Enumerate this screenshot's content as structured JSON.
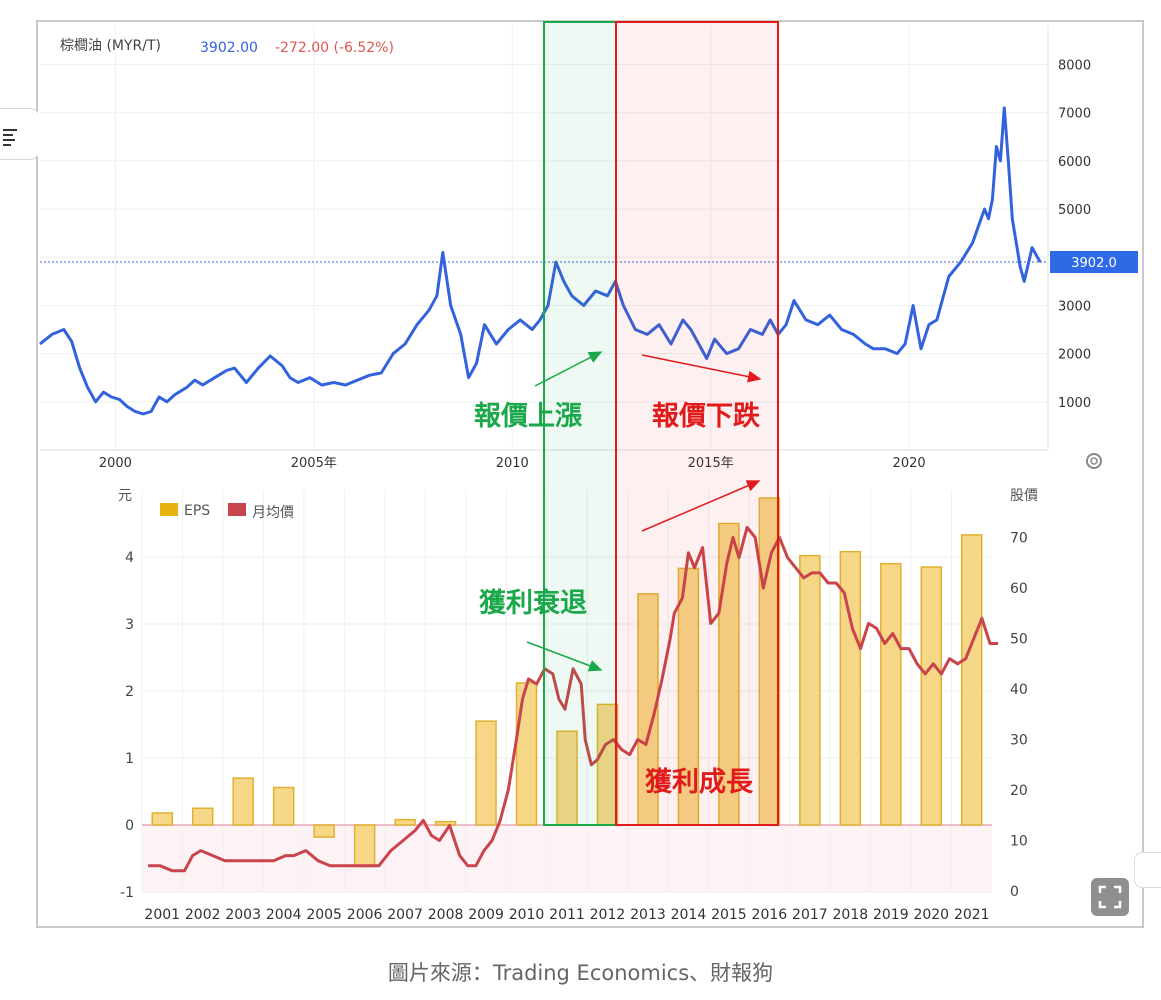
{
  "caption": "圖片來源：Trading Economics、財報狗",
  "top_chart": {
    "series_name": "棕櫚油 (MYR/T)",
    "last_value_text": "3902.00",
    "change_text": "-272.00 (-6.52%)",
    "last_value_badge": "3902.0",
    "colors": {
      "line": "#3362dd",
      "change": "#e0564e",
      "badge": "#2e6ae6"
    }
  },
  "bottom_chart": {
    "left_axis_title": "元",
    "right_axis_title": "股價",
    "colors": {
      "eps_fill": "#f6d787",
      "eps_stroke": "#e0b130",
      "price": "#c9444c"
    }
  },
  "annotations": {
    "price_up": "報價上漲",
    "price_down": "報價下跌",
    "profit_decline": "獲利衰退",
    "profit_growth": "獲利成長",
    "colors": {
      "green": "#1aa84a",
      "red": "#e11b1b"
    }
  },
  "chart_data": [
    {
      "type": "line",
      "title": "棕櫚油 (MYR/T)",
      "x_ticks": [
        "2000",
        "2005年",
        "2010",
        "2015年",
        "2020"
      ],
      "y_ticks": [
        1000,
        2000,
        3000,
        4000,
        5000,
        6000,
        7000,
        8000
      ],
      "ylim": [
        0,
        8800
      ],
      "xlim": [
        1998.1,
        2023.5
      ],
      "grid": true,
      "series": [
        {
          "name": "棕櫚油 (MYR/T)",
          "x": [
            1998.1,
            1998.4,
            1998.7,
            1998.9,
            1999.1,
            1999.3,
            1999.5,
            1999.7,
            1999.9,
            2000.1,
            2000.3,
            2000.5,
            2000.7,
            2000.9,
            2001.1,
            2001.3,
            2001.5,
            2001.6,
            2001.8,
            2002.0,
            2002.2,
            2002.5,
            2002.8,
            2003.0,
            2003.3,
            2003.6,
            2003.9,
            2004.2,
            2004.4,
            2004.6,
            2004.9,
            2005.2,
            2005.5,
            2005.8,
            2006.1,
            2006.4,
            2006.7,
            2007.0,
            2007.3,
            2007.6,
            2007.9,
            2008.1,
            2008.25,
            2008.45,
            2008.7,
            2008.9,
            2009.1,
            2009.3,
            2009.6,
            2009.9,
            2010.2,
            2010.5,
            2010.7,
            2010.9,
            2011.1,
            2011.3,
            2011.5,
            2011.8,
            2012.1,
            2012.4,
            2012.6,
            2012.8,
            2013.1,
            2013.4,
            2013.7,
            2014.0,
            2014.3,
            2014.5,
            2014.7,
            2014.9,
            2015.1,
            2015.4,
            2015.7,
            2016.0,
            2016.3,
            2016.5,
            2016.7,
            2016.9,
            2017.1,
            2017.4,
            2017.7,
            2018.0,
            2018.3,
            2018.6,
            2018.9,
            2019.1,
            2019.4,
            2019.7,
            2019.9,
            2020.1,
            2020.3,
            2020.5,
            2020.7,
            2021.0,
            2021.3,
            2021.6,
            2021.9,
            2022.0,
            2022.1,
            2022.2,
            2022.3,
            2022.4,
            2022.5,
            2022.6,
            2022.8,
            2022.9,
            2023.1,
            2023.3
          ],
          "values": [
            2200,
            2400,
            2500,
            2250,
            1700,
            1300,
            1000,
            1200,
            1100,
            1050,
            900,
            800,
            750,
            800,
            1100,
            1000,
            1150,
            1200,
            1300,
            1450,
            1350,
            1500,
            1650,
            1700,
            1400,
            1700,
            1950,
            1750,
            1500,
            1400,
            1500,
            1350,
            1400,
            1350,
            1450,
            1550,
            1600,
            2000,
            2200,
            2600,
            2900,
            3200,
            4100,
            3000,
            2400,
            1500,
            1800,
            2600,
            2200,
            2500,
            2700,
            2500,
            2700,
            3000,
            3900,
            3500,
            3200,
            3000,
            3300,
            3200,
            3500,
            3000,
            2500,
            2400,
            2600,
            2200,
            2700,
            2500,
            2200,
            1900,
            2300,
            2000,
            2100,
            2500,
            2400,
            2700,
            2400,
            2600,
            3100,
            2700,
            2600,
            2800,
            2500,
            2400,
            2200,
            2100,
            2100,
            2000,
            2200,
            3000,
            2100,
            2600,
            2700,
            3600,
            3900,
            4300,
            5000,
            4800,
            5200,
            6300,
            6000,
            7100,
            6000,
            4800,
            3800,
            3500,
            4200,
            3902
          ]
        }
      ]
    },
    {
      "type": "bar",
      "categories": [
        "2001",
        "2002",
        "2003",
        "2004",
        "2005",
        "2006",
        "2007",
        "2008",
        "2009",
        "2010",
        "2011",
        "2012",
        "2013",
        "2014",
        "2015",
        "2016",
        "2017",
        "2018",
        "2019",
        "2020",
        "2021"
      ],
      "y_ticks": [
        -1,
        0,
        1,
        2,
        3,
        4
      ],
      "ylim": [
        -1,
        4.8
      ],
      "right_y_ticks": [
        0,
        10,
        20,
        30,
        40,
        50,
        60,
        70
      ],
      "right_ylim": [
        0,
        80
      ],
      "left_axis_title": "元",
      "right_axis_title": "股價",
      "grid": true,
      "legend_position": "top-left",
      "series": [
        {
          "name": "EPS",
          "type": "bar",
          "axis": "left",
          "values": [
            0.18,
            0.25,
            0.7,
            0.56,
            -0.18,
            -0.62,
            0.08,
            0.05,
            1.55,
            2.12,
            1.4,
            1.8,
            3.45,
            3.83,
            4.5,
            4.88,
            4.02,
            4.08,
            3.9,
            3.85,
            4.33
          ]
        },
        {
          "name": "月均價",
          "type": "line",
          "axis": "right",
          "x": [
            2001.0,
            2001.3,
            2001.6,
            2001.9,
            2002.1,
            2002.3,
            2002.6,
            2002.9,
            2003.2,
            2003.5,
            2003.8,
            2004.1,
            2004.4,
            2004.6,
            2004.9,
            2005.2,
            2005.5,
            2005.8,
            2006.1,
            2006.4,
            2006.7,
            2007.0,
            2007.3,
            2007.6,
            2007.8,
            2008.0,
            2008.2,
            2008.45,
            2008.7,
            2008.9,
            2009.1,
            2009.3,
            2009.5,
            2009.7,
            2009.9,
            2010.1,
            2010.25,
            2010.4,
            2010.6,
            2010.8,
            2011.0,
            2011.15,
            2011.3,
            2011.5,
            2011.7,
            2011.8,
            2011.95,
            2012.1,
            2012.3,
            2012.5,
            2012.7,
            2012.9,
            2013.1,
            2013.3,
            2013.5,
            2013.7,
            2013.9,
            2014.0,
            2014.2,
            2014.35,
            2014.5,
            2014.7,
            2014.9,
            2015.1,
            2015.3,
            2015.45,
            2015.6,
            2015.8,
            2016.0,
            2016.2,
            2016.4,
            2016.6,
            2016.8,
            2017.0,
            2017.2,
            2017.4,
            2017.6,
            2017.8,
            2018.0,
            2018.2,
            2018.4,
            2018.6,
            2018.8,
            2019.0,
            2019.2,
            2019.4,
            2019.6,
            2019.8,
            2020.0,
            2020.2,
            2020.4,
            2020.6,
            2020.8,
            2021.0,
            2021.2,
            2021.4,
            2021.6,
            2021.8,
            2022.0
          ],
          "values": [
            5,
            5,
            4,
            4,
            7,
            8,
            7,
            6,
            6,
            6,
            6,
            6,
            7,
            7,
            8,
            6,
            5,
            5,
            5,
            5,
            5,
            8,
            10,
            12,
            14,
            11,
            10,
            13,
            7,
            5,
            5,
            8,
            10,
            14,
            20,
            30,
            38,
            42,
            41,
            44,
            43,
            38,
            36,
            44,
            41,
            30,
            25,
            26,
            29,
            30,
            28,
            27,
            30,
            29,
            35,
            42,
            50,
            55,
            58,
            67,
            64,
            68,
            53,
            55,
            65,
            70,
            66,
            72,
            70,
            60,
            67,
            70,
            66,
            64,
            62,
            63,
            63,
            61,
            61,
            59,
            52,
            48,
            53,
            52,
            49,
            51,
            48,
            48,
            45,
            43,
            45,
            43,
            46,
            45,
            46,
            50,
            54,
            49,
            49
          ]
        }
      ]
    }
  ]
}
